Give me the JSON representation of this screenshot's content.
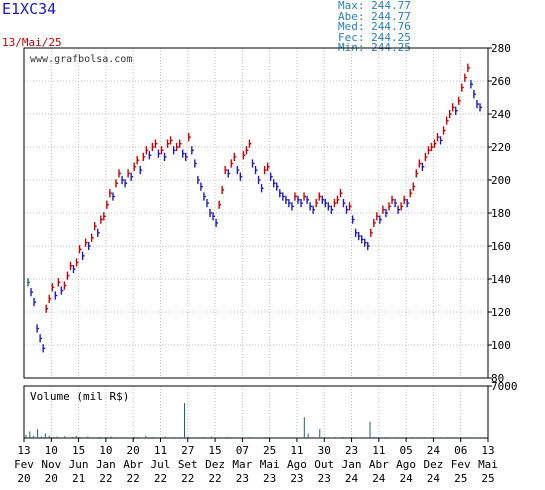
{
  "header": {
    "ticker": "E1XC34",
    "date": "13/Mai/25",
    "stats": [
      {
        "label": "Max:",
        "value": "244.77"
      },
      {
        "label": "Abe:",
        "value": "244.77"
      },
      {
        "label": "Med:",
        "value": "244.76"
      },
      {
        "label": "Fec:",
        "value": "244.25"
      },
      {
        "label": "Min:",
        "value": "244.25"
      }
    ]
  },
  "chart_data": [
    {
      "type": "line",
      "title": "",
      "watermark": "www.grafbolsa.com",
      "ylim": [
        80,
        280
      ],
      "yticks": [
        80,
        100,
        120,
        140,
        160,
        180,
        200,
        220,
        240,
        260,
        280
      ],
      "x_labels": [
        {
          "top": "13",
          "bottom": "Fev",
          "year": "20"
        },
        {
          "top": "10",
          "bottom": "Nov",
          "year": "20"
        },
        {
          "top": "15",
          "bottom": "Jun",
          "year": "21"
        },
        {
          "top": "10",
          "bottom": "Jan",
          "year": "22"
        },
        {
          "top": "20",
          "bottom": "Abr",
          "year": "22"
        },
        {
          "top": "11",
          "bottom": "Jul",
          "year": "22"
        },
        {
          "top": "27",
          "bottom": "Set",
          "year": "22"
        },
        {
          "top": "15",
          "bottom": "Dez",
          "year": "22"
        },
        {
          "top": "07",
          "bottom": "Mar",
          "year": "23"
        },
        {
          "top": "25",
          "bottom": "Mai",
          "year": "23"
        },
        {
          "top": "11",
          "bottom": "Ago",
          "year": "23"
        },
        {
          "top": "30",
          "bottom": "Out",
          "year": "23"
        },
        {
          "top": "23",
          "bottom": "Jan",
          "year": "24"
        },
        {
          "top": "11",
          "bottom": "Abr",
          "year": "24"
        },
        {
          "top": "05",
          "bottom": "Ago",
          "year": "24"
        },
        {
          "top": "24",
          "bottom": "Dez",
          "year": "24"
        },
        {
          "top": "06",
          "bottom": "Fev",
          "year": "25"
        },
        {
          "top": "13",
          "bottom": "Mai",
          "year": "25"
        }
      ],
      "series": [
        {
          "values": [
            138,
            132,
            126,
            110,
            104,
            98,
            122,
            128,
            135,
            130,
            138,
            133,
            136,
            142,
            148,
            146,
            150,
            158,
            154,
            162,
            160,
            165,
            172,
            168,
            176,
            178,
            185,
            192,
            190,
            198,
            204,
            200,
            198,
            204,
            202,
            208,
            212,
            206,
            214,
            218,
            215,
            220,
            222,
            216,
            218,
            214,
            222,
            224,
            218,
            220,
            222,
            216,
            214,
            226,
            218,
            210,
            200,
            196,
            190,
            186,
            180,
            178,
            174,
            185,
            194,
            206,
            204,
            210,
            214,
            206,
            202,
            215,
            218,
            222,
            210,
            206,
            200,
            195,
            206,
            208,
            202,
            198,
            196,
            192,
            190,
            188,
            186,
            184,
            190,
            188,
            186,
            190,
            188,
            184,
            182,
            186,
            190,
            188,
            186,
            184,
            182,
            186,
            188,
            192,
            186,
            182,
            184,
            176,
            168,
            166,
            164,
            162,
            160,
            168,
            174,
            178,
            176,
            182,
            180,
            184,
            188,
            186,
            182,
            184,
            188,
            186,
            192,
            196,
            204,
            210,
            208,
            214,
            218,
            220,
            222,
            226,
            224,
            230,
            236,
            240,
            244,
            242,
            248,
            256,
            262,
            268,
            258,
            252,
            246,
            244
          ]
        }
      ],
      "colors": {
        "up": "#cc0000",
        "down": "#1a1acc",
        "flat": "#1a6b5c",
        "grid": "#c0c0c0",
        "frame": "#000000"
      }
    },
    {
      "type": "bar",
      "title": "Volume (mil R$)",
      "ylim": [
        0,
        7000
      ],
      "yticks": [
        7000
      ],
      "values": [
        400,
        900,
        300,
        1200,
        200,
        600,
        300,
        150,
        200,
        100,
        250,
        80,
        150,
        300,
        120,
        90,
        200,
        100,
        60,
        150,
        80,
        120,
        200,
        100,
        70,
        110,
        90,
        60,
        160,
        130,
        80,
        300,
        100,
        140,
        50,
        90,
        200,
        80,
        120,
        60,
        90,
        4700,
        150,
        80,
        90,
        100,
        120,
        60,
        200,
        90,
        100,
        80,
        150,
        110,
        60,
        90,
        100,
        70,
        120,
        80,
        90,
        60,
        140,
        100,
        80,
        60,
        90,
        110,
        80,
        100,
        70,
        90,
        2800,
        600,
        120,
        80,
        1200,
        90,
        100,
        60,
        110,
        80,
        150,
        90,
        120,
        100,
        70,
        110,
        90,
        2200,
        140,
        100,
        80,
        120,
        90,
        60,
        100,
        80,
        90,
        70,
        110,
        90,
        80,
        100,
        60,
        120,
        90,
        80,
        70,
        110,
        100,
        90,
        80,
        60,
        100,
        90,
        80,
        70,
        60,
        90
      ]
    }
  ]
}
